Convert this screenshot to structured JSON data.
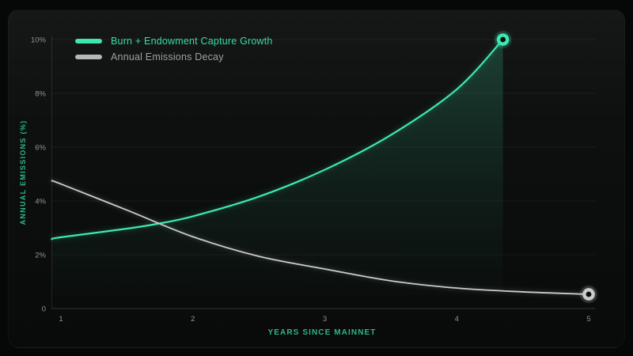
{
  "colors": {
    "growth": "#3de8b0",
    "growth_text": "#38dca6",
    "decay_line": "#c9cccb",
    "decay_swatch": "#b4b8b6",
    "decay_text": "#9ba19e",
    "axis_title": "#2fb58c",
    "tick_label": "#8f9591",
    "grid": "rgba(255,255,255,0.05)",
    "baseline": "rgba(255,255,255,0.16)",
    "yaxis_line": "rgba(255,255,255,0.10)"
  },
  "legend": {
    "items": [
      {
        "label": "Burn + Endowment Capture Growth",
        "swatch_color": "#3de8b0",
        "text_color": "#38dca6"
      },
      {
        "label": "Annual Emissions Decay",
        "swatch_color": "#b4b8b6",
        "text_color": "#9ba19e"
      }
    ]
  },
  "chart_data": {
    "type": "line",
    "title": "",
    "xlabel": "YEARS SINCE MAINNET",
    "ylabel": "ANNUAL EMISSIONS (%)",
    "xlim": [
      0.93,
      5.05
    ],
    "ylim": [
      0,
      10
    ],
    "grid": "horizontal",
    "legend_position": "top-left",
    "x_ticks": [
      {
        "label": "1",
        "value": 1
      },
      {
        "label": "2",
        "value": 2
      },
      {
        "label": "3",
        "value": 3
      },
      {
        "label": "4",
        "value": 4
      },
      {
        "label": "5",
        "value": 5
      }
    ],
    "y_ticks": [
      {
        "label": "10%",
        "value": 10
      },
      {
        "label": "8%",
        "value": 8
      },
      {
        "label": "6%",
        "value": 6
      },
      {
        "label": "4%",
        "value": 4
      },
      {
        "label": "2%",
        "value": 2
      },
      {
        "label": "0",
        "value": 0
      }
    ],
    "series": [
      {
        "name": "Burn + Endowment Capture Growth",
        "color": "#3de8b0",
        "line_width": 2.2,
        "area_fill": true,
        "end_marker": true,
        "marker_name": "growth-end-marker",
        "points": [
          [
            0.93,
            2.58
          ],
          [
            1.0,
            2.65
          ],
          [
            1.5,
            2.97
          ],
          [
            1.72,
            3.14
          ],
          [
            2.0,
            3.43
          ],
          [
            2.5,
            4.16
          ],
          [
            3.0,
            5.16
          ],
          [
            3.5,
            6.45
          ],
          [
            4.0,
            8.15
          ],
          [
            4.35,
            10.0
          ]
        ]
      },
      {
        "name": "Annual Emissions Decay",
        "color": "#c9cccb",
        "line_width": 1.8,
        "area_fill": false,
        "end_marker": true,
        "marker_name": "decay-end-marker",
        "points": [
          [
            0.93,
            4.75
          ],
          [
            1.0,
            4.63
          ],
          [
            1.5,
            3.66
          ],
          [
            2.0,
            2.67
          ],
          [
            2.5,
            1.94
          ],
          [
            3.0,
            1.47
          ],
          [
            3.5,
            1.03
          ],
          [
            4.0,
            0.76
          ],
          [
            4.5,
            0.62
          ],
          [
            5.0,
            0.53
          ]
        ]
      }
    ]
  }
}
